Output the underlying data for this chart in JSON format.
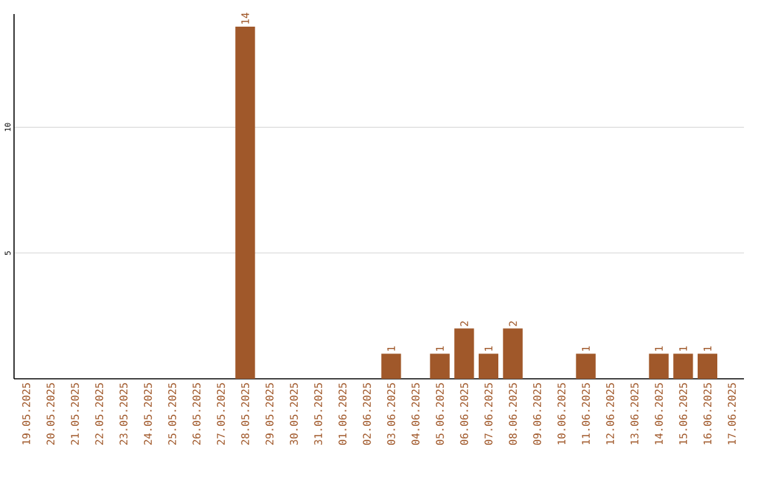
{
  "chart_data": {
    "type": "bar",
    "categories": [
      "19.05.2025",
      "20.05.2025",
      "21.05.2025",
      "22.05.2025",
      "23.05.2025",
      "24.05.2025",
      "25.05.2025",
      "26.05.2025",
      "27.05.2025",
      "28.05.2025",
      "29.05.2025",
      "30.05.2025",
      "31.05.2025",
      "01.06.2025",
      "02.06.2025",
      "03.06.2025",
      "04.06.2025",
      "05.06.2025",
      "06.06.2025",
      "07.06.2025",
      "08.06.2025",
      "09.06.2025",
      "10.06.2025",
      "11.06.2025",
      "12.06.2025",
      "13.06.2025",
      "14.06.2025",
      "15.06.2025",
      "16.06.2025",
      "17.06.2025"
    ],
    "values": [
      0,
      0,
      0,
      0,
      0,
      0,
      0,
      0,
      0,
      14,
      0,
      0,
      0,
      0,
      0,
      1,
      0,
      1,
      2,
      1,
      2,
      0,
      0,
      1,
      0,
      0,
      1,
      1,
      1,
      0
    ],
    "value_labels": [
      null,
      null,
      null,
      null,
      null,
      null,
      null,
      null,
      null,
      "14",
      null,
      null,
      null,
      null,
      null,
      "1",
      null,
      "1",
      "2",
      "1",
      "2",
      null,
      null,
      "1",
      null,
      null,
      "1",
      "1",
      "1",
      null
    ],
    "color": "#a0582a",
    "ylim": [
      0,
      14.5
    ],
    "yticks": [
      5,
      10
    ],
    "grid": "y"
  }
}
